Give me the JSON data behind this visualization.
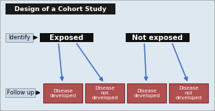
{
  "title": "Design of a Cohort Study",
  "bg_color": "#dde8f0",
  "outer_border": "#aaaaaa",
  "title_bg": "#1a1a1a",
  "title_fg": "#ffffff",
  "label_bg": "#c8d8e8",
  "label_fg": "#111111",
  "exposed_bg": "#111111",
  "exposed_fg": "#ffffff",
  "outcome_bg": "#b05050",
  "outcome_fg": "#ffffff",
  "arrow_color": "#4472c4",
  "black_arrow": "#111111",
  "identify_label": "Identify",
  "followup_label": "Follow up",
  "exposed_label": "Exposed",
  "not_exposed_label": "Not exposed",
  "outcomes": [
    "Disease\ndeveloped",
    "Disease\nnot\ndeveloped",
    "Disease\ndeveloped",
    "Disease\nnot\ndeveloped"
  ],
  "figsize": [
    3.13,
    1.61
  ],
  "dpi": 100
}
